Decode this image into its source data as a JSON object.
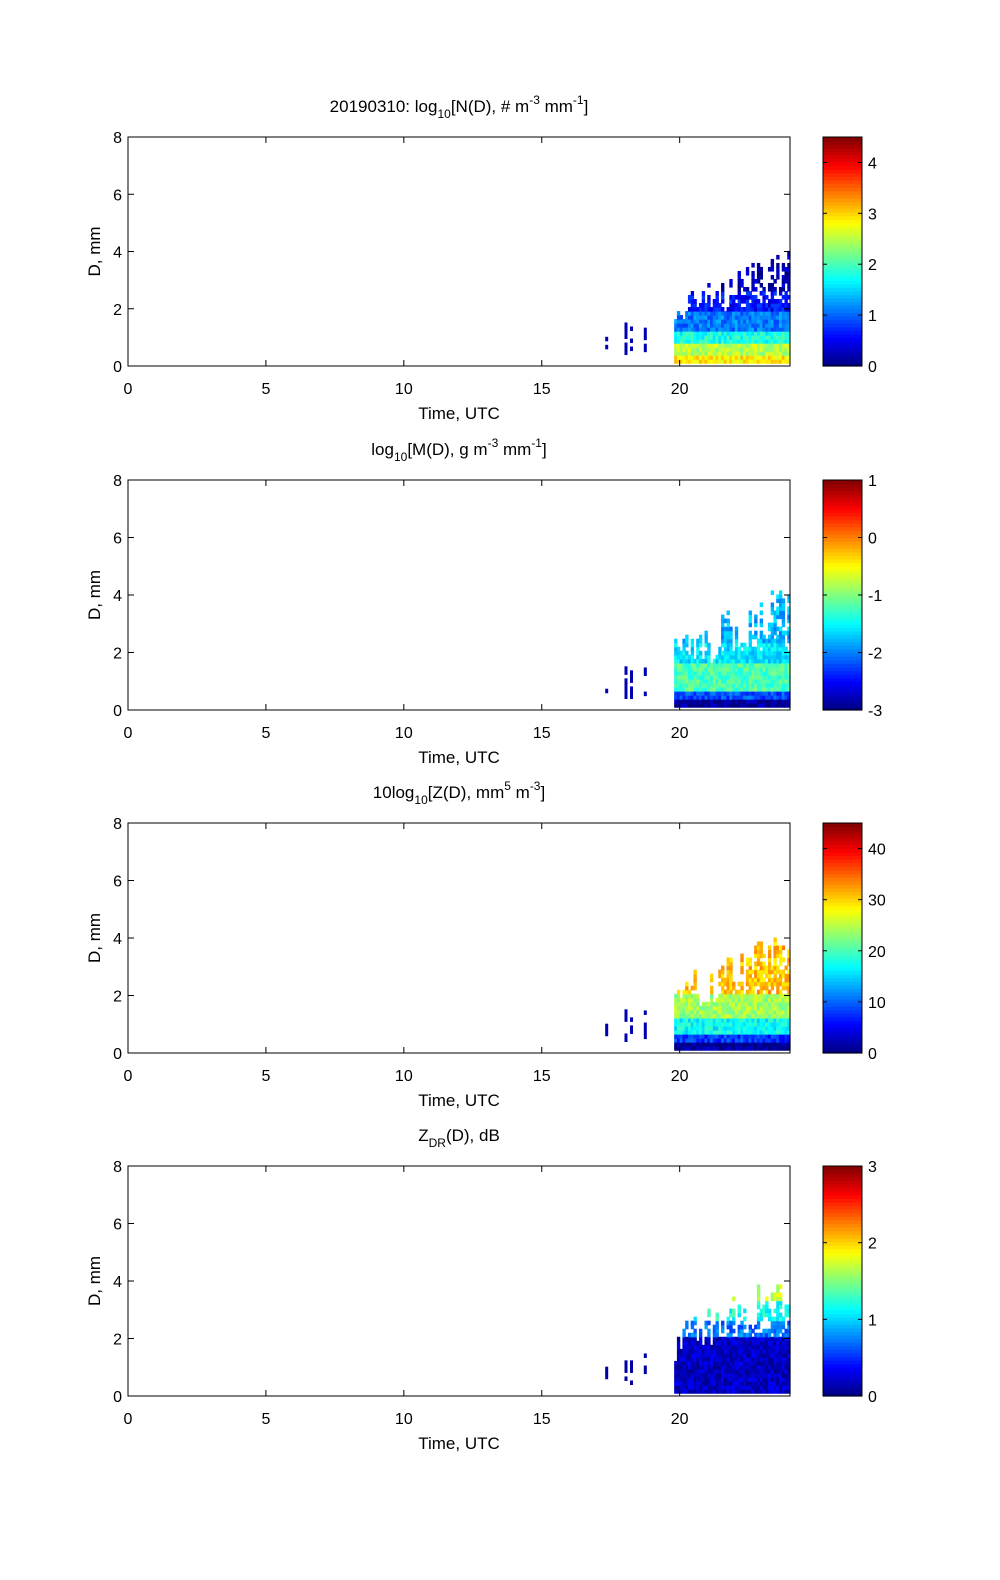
{
  "colormap": "jet",
  "chart_data": [
    {
      "type": "heatmap",
      "title": {
        "prefix": "20190310: log",
        "sub": "10",
        "mid": "[N(D), # m",
        "sup1": "-3",
        "mid2": " mm",
        "sup2": "-1",
        "suffix": "]"
      },
      "xlabel": "Time, UTC",
      "ylabel": "D, mm",
      "xlim": [
        0,
        24
      ],
      "ylim": [
        0,
        8
      ],
      "xticks": [
        0,
        5,
        10,
        15,
        20
      ],
      "yticks": [
        0,
        2,
        4,
        6,
        8
      ],
      "colorbar": {
        "min": 0,
        "max": 4.5,
        "ticks": [
          0,
          1,
          2,
          3,
          4
        ]
      },
      "data_region": {
        "time_start": 17.2,
        "time_end": 24,
        "D_max": 4.5
      },
      "pattern": [
        {
          "D": [
            0.1,
            0.3
          ],
          "value": 2.9
        },
        {
          "D": [
            0.3,
            0.7
          ],
          "value": 2.5
        },
        {
          "D": [
            0.7,
            1.2
          ],
          "value": 1.8
        },
        {
          "D": [
            1.2,
            1.8
          ],
          "value": 1.1
        },
        {
          "D": [
            1.8,
            2.5
          ],
          "value": 0.6
        },
        {
          "D": [
            2.5,
            4.5
          ],
          "value": 0.2
        }
      ]
    },
    {
      "type": "heatmap",
      "title": {
        "prefix": "log",
        "sub": "10",
        "mid": "[M(D), g m",
        "sup1": "-3",
        "mid2": " mm",
        "sup2": "-1",
        "suffix": "]"
      },
      "xlabel": "Time, UTC",
      "ylabel": "D, mm",
      "xlim": [
        0,
        24
      ],
      "ylim": [
        0,
        8
      ],
      "xticks": [
        0,
        5,
        10,
        15,
        20
      ],
      "yticks": [
        0,
        2,
        4,
        6,
        8
      ],
      "colorbar": {
        "min": -3,
        "max": 1,
        "ticks": [
          -3,
          -2,
          -1,
          0,
          1
        ]
      },
      "data_region": {
        "time_start": 17.2,
        "time_end": 24,
        "D_max": 4.5
      },
      "pattern": [
        {
          "D": [
            0.1,
            0.3
          ],
          "value": -2.9
        },
        {
          "D": [
            0.3,
            0.6
          ],
          "value": -2.2
        },
        {
          "D": [
            0.6,
            1.6
          ],
          "value": -1.2
        },
        {
          "D": [
            1.6,
            2.3
          ],
          "value": -1.6
        },
        {
          "D": [
            2.3,
            4.5
          ],
          "value": -1.8
        }
      ]
    },
    {
      "type": "heatmap",
      "title": {
        "prefix": "10log",
        "sub": "10",
        "mid": "[Z(D),  mm",
        "sup1": "5",
        "mid2": " m",
        "sup2": "-3",
        "suffix": "]"
      },
      "xlabel": "Time, UTC",
      "ylabel": "D, mm",
      "xlim": [
        0,
        24
      ],
      "ylim": [
        0,
        8
      ],
      "xticks": [
        0,
        5,
        10,
        15,
        20
      ],
      "yticks": [
        0,
        2,
        4,
        6,
        8
      ],
      "colorbar": {
        "min": 0,
        "max": 45,
        "ticks": [
          0,
          10,
          20,
          30,
          40
        ]
      },
      "data_region": {
        "time_start": 17.2,
        "time_end": 24,
        "D_max": 4.5
      },
      "pattern": [
        {
          "D": [
            0.1,
            0.3
          ],
          "value": 1
        },
        {
          "D": [
            0.3,
            0.6
          ],
          "value": 8
        },
        {
          "D": [
            0.6,
            1.2
          ],
          "value": 17
        },
        {
          "D": [
            1.2,
            2.0
          ],
          "value": 24
        },
        {
          "D": [
            2.0,
            4.5
          ],
          "value": 31
        }
      ]
    },
    {
      "type": "heatmap",
      "title": {
        "prefix": "Z",
        "sub": "DR",
        "mid": "(D), dB",
        "sup1": "",
        "mid2": "",
        "sup2": "",
        "suffix": ""
      },
      "xlabel": "Time, UTC",
      "ylabel": "D, mm",
      "xlim": [
        0,
        24
      ],
      "ylim": [
        0,
        8
      ],
      "xticks": [
        0,
        5,
        10,
        15,
        20
      ],
      "yticks": [
        0,
        2,
        4,
        6,
        8
      ],
      "colorbar": {
        "min": 0,
        "max": 3,
        "ticks": [
          0,
          1,
          2,
          3
        ]
      },
      "data_region": {
        "time_start": 17.2,
        "time_end": 24,
        "D_max": 4.5
      },
      "pattern": [
        {
          "D": [
            0.1,
            2.0
          ],
          "value": 0.2
        },
        {
          "D": [
            2.0,
            2.6
          ],
          "value": 0.7
        },
        {
          "D": [
            2.6,
            3.2
          ],
          "value": 1.2
        },
        {
          "D": [
            3.2,
            4.0
          ],
          "value": 1.7
        },
        {
          "D": [
            4.0,
            4.5
          ],
          "value": 2.8
        }
      ]
    }
  ]
}
